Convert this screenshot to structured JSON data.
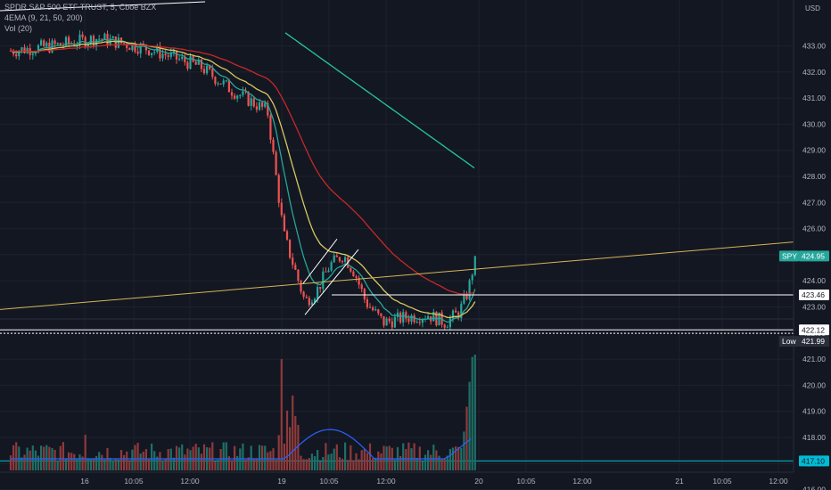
{
  "legend": {
    "line1": "SPDR S&P 500 ETF TRUST, 5, Cboe BZX",
    "line2": "4EMA (9, 21, 50, 200)",
    "line3": "Vol (20)"
  },
  "colors": {
    "background": "#131722",
    "grid": "#1e222d",
    "axis_text": "#b2b5be",
    "candle_up": "#26a69a",
    "candle_down": "#ef5350",
    "ema9": "#26a69a",
    "ema21": "#d6c860",
    "ema50": "#c62828",
    "ema200": "#26c6a6",
    "trendline": "#d6b656",
    "hline": "#ffffff",
    "volume_level": "#00bcd4",
    "volume_ma": "#2962ff",
    "badge_symbol": "#26a69a",
    "badge_low": "#2a2e39"
  },
  "chart_data": {
    "type": "candlestick",
    "symbol": "SPY",
    "interval": "5",
    "currency": "USD",
    "x_axis_labels": [
      "16",
      "10:05",
      "12:00",
      "19",
      "10:05",
      "12:00",
      "20",
      "10:05",
      "12:00",
      "21",
      "10:05",
      "12:00"
    ],
    "price_axis_ticks": [
      416.0,
      417.0,
      418.0,
      419.0,
      420.0,
      421.0,
      422.0,
      423.0,
      424.0,
      425.0,
      426.0,
      427.0,
      428.0,
      429.0,
      430.0,
      431.0,
      432.0,
      433.0
    ],
    "price_axis_ticks_text": [
      "416.00",
      "417.00",
      "418.00",
      "419.00",
      "420.00",
      "421.00",
      "422.00",
      "423.00",
      "424.00",
      "425.00",
      "426.00",
      "427.00",
      "428.00",
      "429.00",
      "430.00",
      "431.00",
      "432.00",
      "433.00"
    ],
    "price_labels": {
      "symbol_tag": "SPY",
      "last_price": "424.95",
      "level_1": "423.46",
      "level_2": "422.12",
      "low_tag": "Low",
      "low_price": "421.99",
      "volume_level": "417.10"
    },
    "key_points": {
      "day16_close": 433.2,
      "day19_open": 427.0,
      "day19_low": 422.7,
      "flag_top": 425.3,
      "day19_session_low": 421.99,
      "last": 424.95
    },
    "trendline": {
      "start_price": 422.9,
      "end_price": 425.5
    },
    "horizontal_levels": [
      423.46,
      422.12,
      421.99
    ],
    "volume_level": 417.1
  }
}
